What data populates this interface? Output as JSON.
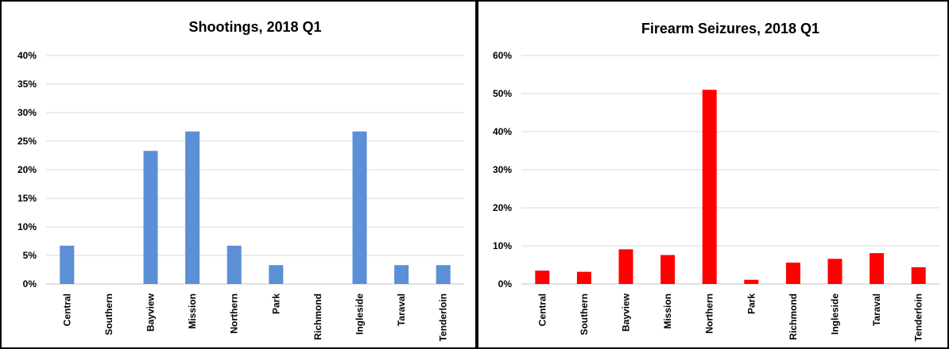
{
  "chart_data": [
    {
      "type": "bar",
      "title": "Shootings, 2018 Q1",
      "xlabel": "",
      "ylabel": "",
      "ylim": [
        0,
        40
      ],
      "yticks": [
        "0%",
        "5%",
        "10%",
        "15%",
        "20%",
        "25%",
        "30%",
        "35%",
        "40%"
      ],
      "ytick_values": [
        0,
        5,
        10,
        15,
        20,
        25,
        30,
        35,
        40
      ],
      "categories": [
        "Central",
        "Southern",
        "Bayview",
        "Mission",
        "Northern",
        "Park",
        "Richmond",
        "Ingleside",
        "Taraval",
        "Tenderloin"
      ],
      "values": [
        6.7,
        0,
        23.3,
        26.7,
        6.7,
        3.3,
        0,
        26.7,
        3.3,
        3.3
      ],
      "color": "#5b8fd6",
      "grid": true,
      "legend": "none"
    },
    {
      "type": "bar",
      "title": "Firearm Seizures, 2018 Q1",
      "xlabel": "",
      "ylabel": "",
      "ylim": [
        0,
        60
      ],
      "yticks": [
        "0%",
        "10%",
        "20%",
        "30%",
        "40%",
        "50%",
        "60%"
      ],
      "ytick_values": [
        0,
        10,
        20,
        30,
        40,
        50,
        60
      ],
      "categories": [
        "Central",
        "Southern",
        "Bayview",
        "Mission",
        "Northern",
        "Park",
        "Richmond",
        "Ingleside",
        "Taraval",
        "Tenderloin"
      ],
      "values": [
        3.5,
        3.2,
        9.1,
        7.6,
        51.0,
        1.1,
        5.6,
        6.6,
        8.1,
        4.4
      ],
      "color": "#ff0000",
      "grid": true,
      "legend": "none"
    }
  ]
}
